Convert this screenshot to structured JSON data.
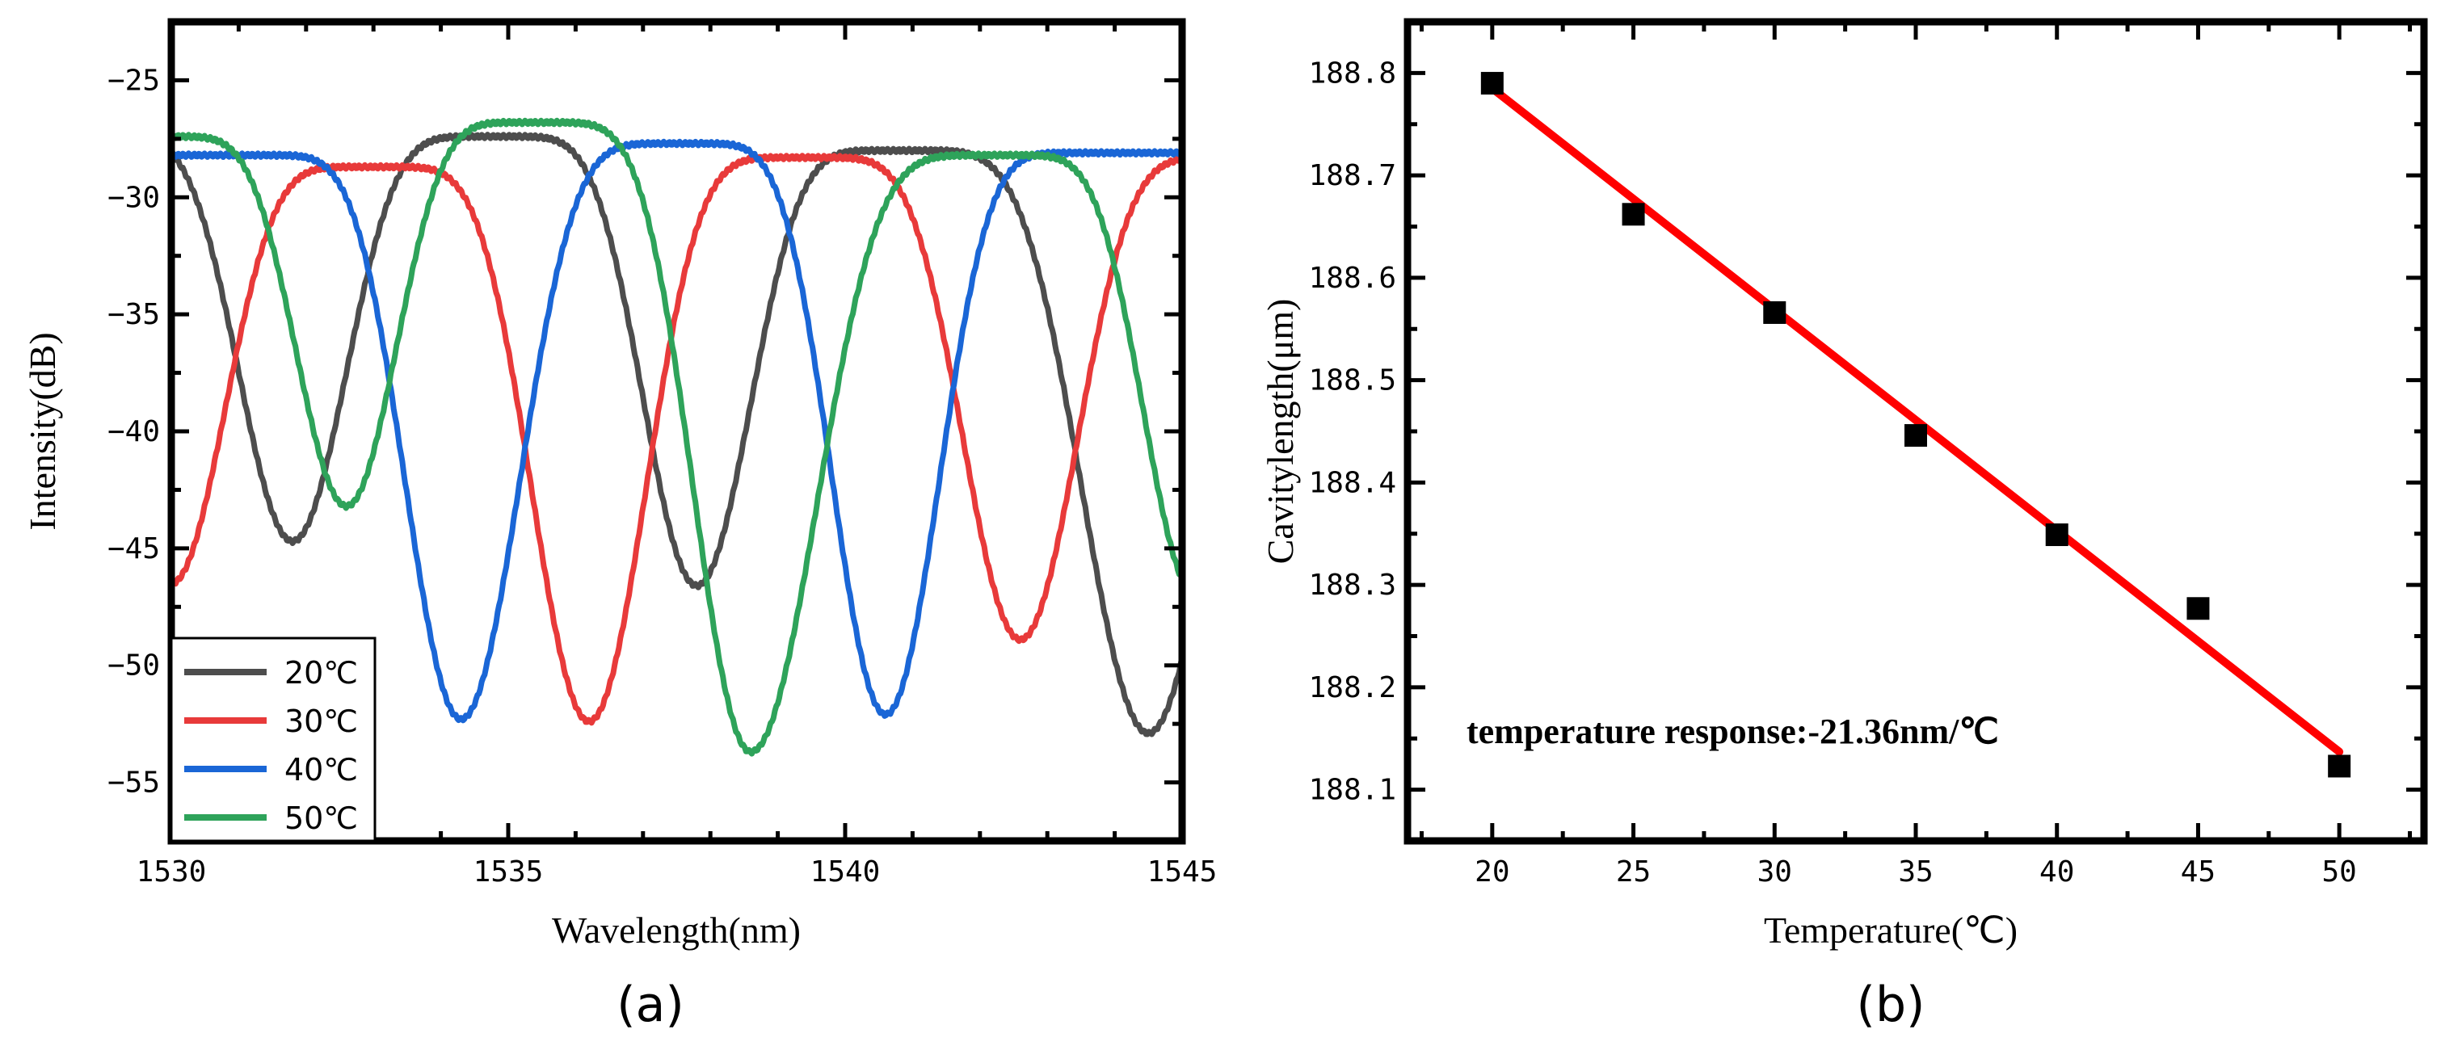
{
  "panels": {
    "a": {
      "label": "(a)"
    },
    "b": {
      "label": "(b)"
    }
  },
  "chart_data": [
    {
      "type": "line",
      "panel": "(a)",
      "title": "",
      "xlabel": "Wavelength(nm)",
      "ylabel": "Intensity(dB)",
      "xlim": [
        1530,
        1545
      ],
      "ylim": [
        -57.5,
        -22.5
      ],
      "xticks": [
        1530,
        1535,
        1540,
        1545
      ],
      "yticks": [
        -25,
        -30,
        -35,
        -40,
        -45,
        -50,
        -55
      ],
      "xtick_labels": [
        "1530",
        "1535",
        "1540",
        "1545"
      ],
      "ytick_labels": [
        "−25",
        "−30",
        "−35",
        "−40",
        "−45",
        "−50",
        "−55"
      ],
      "legend_position": "bottom-left",
      "series": [
        {
          "name": "20℃",
          "color": "#4d4d4d",
          "peaks": [
            1534.8,
            1540.8
          ],
          "peak_levels": [
            -27.4,
            -28.0
          ],
          "dips": [
            1531.8,
            1537.8,
            1544.5
          ],
          "dip_levels": [
            -44.7,
            -46.6,
            -52.9
          ]
        },
        {
          "name": "30℃",
          "color": "#e83a3a",
          "peaks": [
            1533.0,
            1539.4
          ],
          "peak_levels": [
            -28.7,
            -28.3
          ],
          "dips": [
            1530.0,
            1536.2,
            1542.6
          ],
          "dip_levels": [
            -46.5,
            -52.4,
            -48.9
          ]
        },
        {
          "name": "40℃",
          "color": "#1a66d6",
          "peaks": [
            1531.2,
            1537.6,
            1543.6
          ],
          "peak_levels": [
            -28.2,
            -27.7,
            -28.1
          ],
          "dips": [
            1534.3,
            1540.6
          ],
          "dip_levels": [
            -52.3,
            -52.1
          ]
        },
        {
          "name": "50℃",
          "color": "#2ea35a",
          "peaks": [
            1529.8,
            1535.4,
            1542.3
          ],
          "peak_levels": [
            -27.4,
            -26.8,
            -28.2
          ],
          "dips": [
            1532.6,
            1538.6,
            1545.2
          ],
          "dip_levels": [
            -43.2,
            -53.7,
            -47.0
          ]
        }
      ]
    },
    {
      "type": "scatter",
      "panel": "(b)",
      "title": "",
      "xlabel": "Temperature(℃)",
      "ylabel": "Cavitylength(μm)",
      "xlim": [
        17,
        53
      ],
      "ylim": [
        188.05,
        188.85
      ],
      "xticks": [
        20,
        25,
        30,
        35,
        40,
        45,
        50
      ],
      "yticks": [
        188.1,
        188.2,
        188.3,
        188.4,
        188.5,
        188.6,
        188.7,
        188.8
      ],
      "xtick_labels": [
        "20",
        "25",
        "30",
        "35",
        "40",
        "45",
        "50"
      ],
      "ytick_labels": [
        "188.1",
        "188.2",
        "188.3",
        "188.4",
        "188.5",
        "188.6",
        "188.7",
        "188.8"
      ],
      "x": [
        20,
        25,
        30,
        35,
        40,
        45,
        50
      ],
      "y": [
        188.79,
        188.662,
        188.566,
        188.446,
        188.349,
        188.277,
        188.123
      ],
      "marker_color": "#000000",
      "fit": {
        "x": [
          20,
          50
        ],
        "y": [
          188.785,
          188.137
        ],
        "color": "#ff0000"
      },
      "annotation": "temperature response:-21.36nm/℃"
    }
  ]
}
